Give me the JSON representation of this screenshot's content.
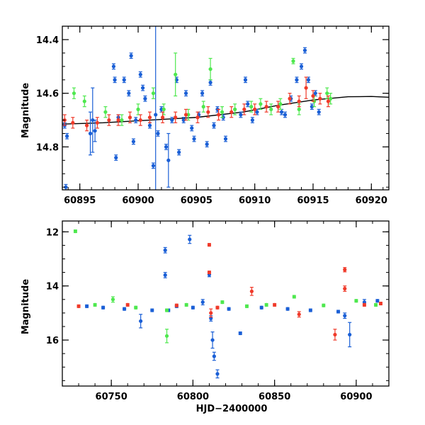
{
  "colors": {
    "blue": "#1a5fd6",
    "green": "#4ee84e",
    "red": "#f03a2a",
    "axis": "#000000"
  },
  "chart_data": [
    {
      "type": "scatter",
      "title": "",
      "xlabel": "",
      "ylabel": "Magnitude",
      "xlim": [
        60893.5,
        60921.5
      ],
      "ylim": [
        14.96,
        14.35
      ],
      "y_inverted": true,
      "grid": false,
      "xticks": [
        60895,
        60900,
        60905,
        60910,
        60915,
        60920
      ],
      "yticks": [
        14.4,
        14.6,
        14.8
      ],
      "xtick_labels": [
        "60895",
        "60900",
        "60905",
        "60910",
        "60915",
        "60920"
      ],
      "ytick_labels": [
        "14.4",
        "14.6",
        "14.8"
      ],
      "model_curve": {
        "x": [
          60893.5,
          60897,
          60901,
          60905,
          60909,
          60912,
          60915,
          60918,
          60920,
          60921.5
        ],
        "y": [
          14.715,
          14.71,
          14.7,
          14.69,
          14.67,
          14.645,
          14.625,
          14.613,
          14.612,
          14.615
        ]
      },
      "series": [
        {
          "color_key": "blue",
          "points": [
            [
              60893.7,
              14.72,
              0.01
            ],
            [
              60893.9,
              14.76,
              0.01
            ],
            [
              60893.8,
              14.95,
              0.01
            ],
            [
              60895.9,
              14.75,
              0.08
            ],
            [
              60896.1,
              14.7,
              0.12
            ],
            [
              60896.3,
              14.74,
              0.04
            ],
            [
              60897.9,
              14.5,
              0.01
            ],
            [
              60898.0,
              14.55,
              0.01
            ],
            [
              60898.1,
              14.84,
              0.01
            ],
            [
              60898.3,
              14.69,
              0.01
            ],
            [
              60898.8,
              14.55,
              0.01
            ],
            [
              60899.2,
              14.6,
              0.01
            ],
            [
              60899.4,
              14.46,
              0.01
            ],
            [
              60899.6,
              14.78,
              0.01
            ],
            [
              60899.8,
              14.7,
              0.01
            ],
            [
              60900.2,
              14.53,
              0.01
            ],
            [
              60900.4,
              14.58,
              0.01
            ],
            [
              60900.6,
              14.62,
              0.01
            ],
            [
              60901.0,
              14.72,
              0.01
            ],
            [
              60901.3,
              14.87,
              0.01
            ],
            [
              60901.5,
              14.68,
              0.35
            ],
            [
              60901.7,
              14.75,
              0.01
            ],
            [
              60902.0,
              14.66,
              0.01
            ],
            [
              60902.4,
              14.8,
              0.01
            ],
            [
              60902.6,
              14.85,
              0.1
            ],
            [
              60902.9,
              14.7,
              0.01
            ],
            [
              60903.3,
              14.55,
              0.01
            ],
            [
              60903.5,
              14.82,
              0.01
            ],
            [
              60903.9,
              14.7,
              0.01
            ],
            [
              60904.1,
              14.6,
              0.01
            ],
            [
              60904.6,
              14.73,
              0.01
            ],
            [
              60904.8,
              14.77,
              0.01
            ],
            [
              60905.2,
              14.68,
              0.01
            ],
            [
              60905.5,
              14.6,
              0.01
            ],
            [
              60905.9,
              14.79,
              0.01
            ],
            [
              60906.2,
              14.56,
              0.01
            ],
            [
              60906.5,
              14.72,
              0.01
            ],
            [
              60906.8,
              14.66,
              0.01
            ],
            [
              60907.3,
              14.69,
              0.01
            ],
            [
              60907.5,
              14.77,
              0.01
            ],
            [
              60908.8,
              14.68,
              0.01
            ],
            [
              60909.2,
              14.55,
              0.01
            ],
            [
              60909.4,
              14.64,
              0.01
            ],
            [
              60909.8,
              14.7,
              0.01
            ],
            [
              60910.2,
              14.67,
              0.01
            ],
            [
              60912.3,
              14.67,
              0.01
            ],
            [
              60912.6,
              14.68,
              0.01
            ],
            [
              60913.1,
              14.62,
              0.01
            ],
            [
              60913.6,
              14.55,
              0.01
            ],
            [
              60914.0,
              14.5,
              0.01
            ],
            [
              60914.3,
              14.44,
              0.01
            ],
            [
              60914.6,
              14.55,
              0.01
            ],
            [
              60914.9,
              14.65,
              0.01
            ],
            [
              60915.2,
              14.6,
              0.01
            ],
            [
              60915.5,
              14.67,
              0.01
            ]
          ]
        },
        {
          "color_key": "green",
          "points": [
            [
              60894.5,
              14.6,
              0.02
            ],
            [
              60895.4,
              14.63,
              0.02
            ],
            [
              60897.2,
              14.67,
              0.02
            ],
            [
              60898.6,
              14.7,
              0.02
            ],
            [
              60900.0,
              14.66,
              0.02
            ],
            [
              60901.3,
              14.6,
              0.02
            ],
            [
              60902.2,
              14.66,
              0.02
            ],
            [
              60903.2,
              14.53,
              0.08
            ],
            [
              60904.3,
              14.68,
              0.02
            ],
            [
              60905.6,
              14.65,
              0.02
            ],
            [
              60906.2,
              14.51,
              0.04
            ],
            [
              60907.2,
              14.67,
              0.02
            ],
            [
              60908.3,
              14.66,
              0.02
            ],
            [
              60909.7,
              14.65,
              0.02
            ],
            [
              60910.5,
              14.64,
              0.02
            ],
            [
              60911.4,
              14.66,
              0.02
            ],
            [
              60912.2,
              14.64,
              0.02
            ],
            [
              60913.3,
              14.48,
              0.01
            ],
            [
              60913.8,
              14.66,
              0.02
            ],
            [
              60915.1,
              14.63,
              0.02
            ],
            [
              60916.2,
              14.6,
              0.02
            ],
            [
              60916.5,
              14.62,
              0.02
            ]
          ]
        },
        {
          "color_key": "red",
          "points": [
            [
              60893.7,
              14.7,
              0.02
            ],
            [
              60894.4,
              14.71,
              0.02
            ],
            [
              60895.6,
              14.72,
              0.02
            ],
            [
              60896.5,
              14.71,
              0.02
            ],
            [
              60897.5,
              14.7,
              0.02
            ],
            [
              60898.3,
              14.7,
              0.02
            ],
            [
              60899.3,
              14.69,
              0.02
            ],
            [
              60900.2,
              14.7,
              0.02
            ],
            [
              60901.0,
              14.69,
              0.02
            ],
            [
              60902.1,
              14.69,
              0.02
            ],
            [
              60903.2,
              14.69,
              0.02
            ],
            [
              60904.1,
              14.68,
              0.02
            ],
            [
              60905.1,
              14.69,
              0.02
            ],
            [
              60906.0,
              14.67,
              0.02
            ],
            [
              60906.9,
              14.68,
              0.02
            ],
            [
              60908.0,
              14.67,
              0.02
            ],
            [
              60909.1,
              14.66,
              0.02
            ],
            [
              60910.0,
              14.66,
              0.02
            ],
            [
              60911.0,
              14.65,
              0.02
            ],
            [
              60912.0,
              14.65,
              0.02
            ],
            [
              60913.0,
              14.62,
              0.02
            ],
            [
              60913.8,
              14.63,
              0.02
            ],
            [
              60914.4,
              14.58,
              0.04
            ],
            [
              60915.0,
              14.61,
              0.02
            ],
            [
              60915.6,
              14.62,
              0.02
            ],
            [
              60916.3,
              14.63,
              0.02
            ]
          ]
        }
      ]
    },
    {
      "type": "scatter",
      "title": "",
      "xlabel": "HJD−2400000",
      "ylabel": "Magnitude",
      "xlim": [
        60720,
        60920
      ],
      "ylim": [
        17.7,
        11.6
      ],
      "y_inverted": true,
      "grid": false,
      "xticks": [
        60750,
        60800,
        60850,
        60900
      ],
      "yticks": [
        12,
        14,
        16
      ],
      "xtick_labels": [
        "60750",
        "60800",
        "60850",
        "60900"
      ],
      "ytick_labels": [
        "12",
        "14",
        "16"
      ],
      "series": [
        {
          "color_key": "blue",
          "points": [
            [
              60735,
              14.75,
              0.05
            ],
            [
              60745,
              14.8,
              0.05
            ],
            [
              60758,
              14.85,
              0.05
            ],
            [
              60768,
              15.3,
              0.25
            ],
            [
              60775,
              14.9,
              0.05
            ],
            [
              60783,
              12.68,
              0.1
            ],
            [
              60783,
              13.6,
              0.1
            ],
            [
              60785,
              14.9,
              0.05
            ],
            [
              60790,
              14.75,
              0.05
            ],
            [
              60798,
              12.28,
              0.15
            ],
            [
              60800,
              14.8,
              0.05
            ],
            [
              60806,
              14.6,
              0.1
            ],
            [
              60810,
              13.58,
              0.08
            ],
            [
              60811,
              15.2,
              0.1
            ],
            [
              60812,
              16.0,
              0.3
            ],
            [
              60813,
              16.6,
              0.15
            ],
            [
              60815,
              17.25,
              0.15
            ],
            [
              60822,
              14.85,
              0.05
            ],
            [
              60829,
              15.75,
              0.05
            ],
            [
              60842,
              14.8,
              0.05
            ],
            [
              60858,
              14.85,
              0.05
            ],
            [
              60872,
              14.9,
              0.05
            ],
            [
              60889,
              14.95,
              0.05
            ],
            [
              60893,
              15.1,
              0.1
            ],
            [
              60896,
              15.8,
              0.45
            ],
            [
              60905,
              14.6,
              0.1
            ],
            [
              60913,
              14.55,
              0.05
            ]
          ]
        },
        {
          "color_key": "green",
          "points": [
            [
              60728,
              11.98,
              0.05
            ],
            [
              60740,
              14.7,
              0.05
            ],
            [
              60751,
              14.5,
              0.1
            ],
            [
              60765,
              14.8,
              0.05
            ],
            [
              60784,
              15.85,
              0.25
            ],
            [
              60784,
              14.9,
              0.05
            ],
            [
              60796,
              14.7,
              0.05
            ],
            [
              60818,
              14.6,
              0.05
            ],
            [
              60833,
              14.75,
              0.05
            ],
            [
              60845,
              14.7,
              0.05
            ],
            [
              60862,
              14.4,
              0.05
            ],
            [
              60880,
              14.72,
              0.05
            ],
            [
              60900,
              14.55,
              0.05
            ],
            [
              60912,
              14.7,
              0.05
            ]
          ]
        },
        {
          "color_key": "red",
          "points": [
            [
              60730,
              14.75,
              0.05
            ],
            [
              60760,
              14.7,
              0.05
            ],
            [
              60790,
              14.72,
              0.05
            ],
            [
              60810,
              12.48,
              0.05
            ],
            [
              60810,
              13.5,
              0.05
            ],
            [
              60811,
              15.0,
              0.15
            ],
            [
              60815,
              14.8,
              0.05
            ],
            [
              60836,
              14.2,
              0.15
            ],
            [
              60850,
              14.7,
              0.05
            ],
            [
              60865,
              15.05,
              0.1
            ],
            [
              60887,
              15.8,
              0.2
            ],
            [
              60893,
              13.4,
              0.08
            ],
            [
              60893,
              14.1,
              0.1
            ],
            [
              60905,
              14.7,
              0.05
            ],
            [
              60915,
              14.65,
              0.05
            ]
          ]
        }
      ]
    }
  ]
}
